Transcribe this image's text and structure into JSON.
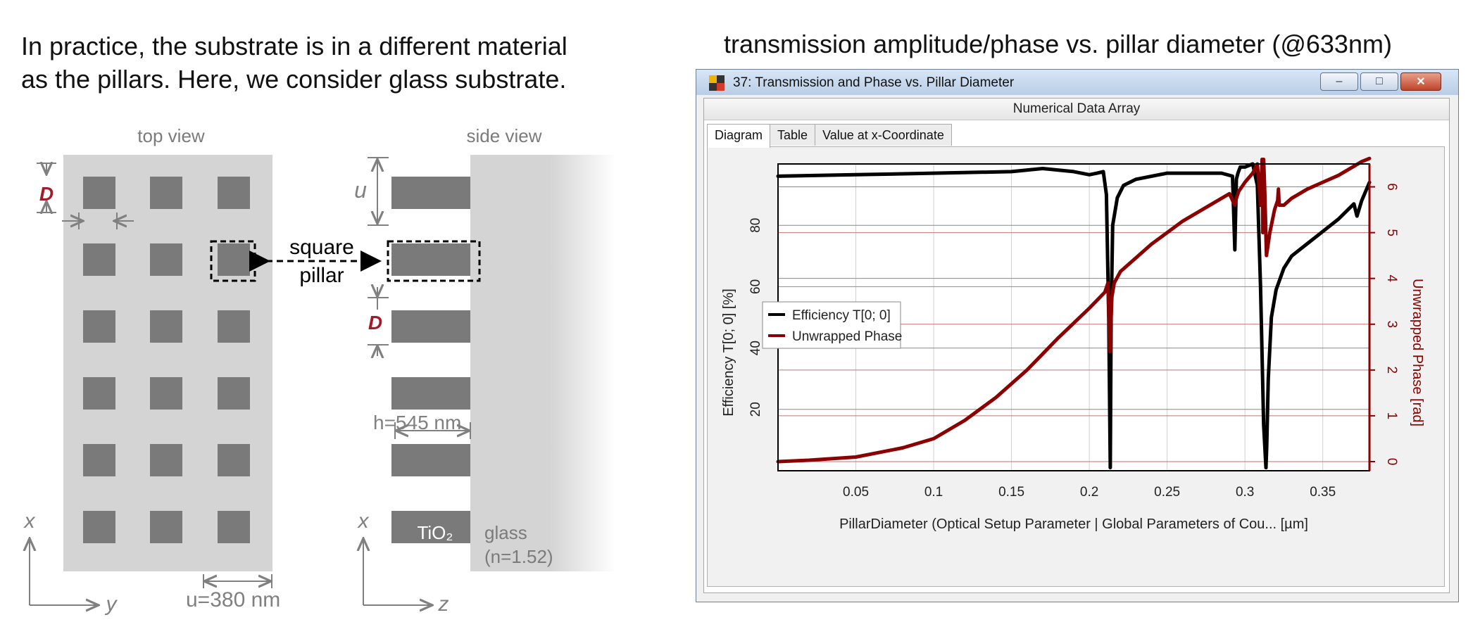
{
  "intro_text": {
    "line1": "In practice, the substrate is in a different material",
    "line2": "as the pillars. Here, we consider glass substrate."
  },
  "left_diagram": {
    "top_view_label": "top view",
    "side_view_label": "side view",
    "d_label": "D",
    "u_label": "u",
    "square_label": "square",
    "pillar_label": "pillar",
    "h_label": "h=545 nm",
    "tio2_label": "TiO₂",
    "glass_label": "glass",
    "n_label": "(n=1.52)",
    "u_value_label": "u=380 nm",
    "axis_x": "x",
    "axis_y": "y",
    "axis_z": "z",
    "colors": {
      "substrate": "#d4d4d4",
      "pillar": "#7a7a7a",
      "accent": "#a31a2b"
    }
  },
  "right_title": "transmission amplitude/phase vs. pillar diameter (@633nm)",
  "window": {
    "title": "37: Transmission and Phase vs. Pillar Diameter",
    "minimize": "–",
    "maximize": "□",
    "close": "✕",
    "header": "Numerical Data Array",
    "tabs": [
      "Diagram",
      "Table",
      "Value at x-Coordinate"
    ],
    "active_tab": "Diagram"
  },
  "chart_data": {
    "type": "line",
    "xlabel": "PillarDiameter (Optical Setup Parameter | Global Parameters of Cou... [µm]",
    "ylabel_left": "Efficiency T[0; 0] [%]",
    "ylabel_right": "Unwrapped Phase [rad]",
    "xlim": [
      0,
      0.38
    ],
    "ylim_left": [
      0,
      100
    ],
    "ylim_right": [
      -0.2,
      6.5
    ],
    "x_ticks": [
      0.05,
      0.1,
      0.15,
      0.2,
      0.25,
      0.3,
      0.35
    ],
    "y_ticks_left": [
      20,
      40,
      60,
      80
    ],
    "y_ticks_right": [
      0,
      1,
      2,
      3,
      4,
      5,
      6
    ],
    "grid": true,
    "legend_position": "center-left",
    "series": [
      {
        "name": "Efficiency T[0; 0]",
        "axis": "left",
        "color": "#000000",
        "x": [
          0,
          0.05,
          0.1,
          0.15,
          0.17,
          0.19,
          0.2,
          0.205,
          0.209,
          0.211,
          0.2125,
          0.2135,
          0.214,
          0.215,
          0.218,
          0.222,
          0.23,
          0.25,
          0.27,
          0.285,
          0.292,
          0.2935,
          0.2945,
          0.2955,
          0.297,
          0.3,
          0.305,
          0.308,
          0.31,
          0.312,
          0.3135,
          0.314,
          0.315,
          0.317,
          0.32,
          0.325,
          0.33,
          0.34,
          0.35,
          0.36,
          0.37,
          0.372,
          0.375,
          0.38
        ],
        "y": [
          96,
          96.5,
          97,
          97.5,
          98.5,
          97.5,
          96.5,
          97,
          97.5,
          90,
          50,
          1,
          50,
          80,
          89,
          93,
          95,
          97,
          97,
          97,
          96,
          72,
          95,
          97,
          99,
          99,
          100,
          93,
          60,
          15,
          1,
          8,
          30,
          50,
          59,
          66,
          70,
          74,
          78,
          82,
          87,
          83,
          88,
          94
        ]
      },
      {
        "name": "Unwrapped Phase",
        "axis": "right",
        "color": "#8b0000",
        "x": [
          0,
          0.02,
          0.05,
          0.08,
          0.1,
          0.12,
          0.14,
          0.16,
          0.18,
          0.2,
          0.21,
          0.212,
          0.2132,
          0.2138,
          0.2145,
          0.216,
          0.22,
          0.24,
          0.26,
          0.28,
          0.29,
          0.2935,
          0.2945,
          0.296,
          0.3,
          0.305,
          0.308,
          0.31,
          0.311,
          0.3115,
          0.312,
          0.3128,
          0.3138,
          0.316,
          0.319,
          0.321,
          0.3215,
          0.322,
          0.325,
          0.33,
          0.34,
          0.35,
          0.36,
          0.37,
          0.375,
          0.38
        ],
        "y": [
          0.0,
          0.03,
          0.1,
          0.3,
          0.5,
          0.9,
          1.4,
          2.0,
          2.7,
          3.35,
          3.7,
          3.9,
          2.4,
          3.0,
          3.6,
          3.9,
          4.15,
          4.75,
          5.25,
          5.65,
          5.85,
          5.6,
          5.75,
          5.9,
          6.1,
          6.3,
          6.5,
          5.6,
          6.6,
          5.0,
          6.6,
          5.8,
          4.5,
          5.0,
          5.5,
          5.7,
          5.95,
          5.6,
          5.6,
          5.75,
          5.95,
          6.1,
          6.25,
          6.45,
          6.55,
          6.62
        ]
      }
    ]
  }
}
